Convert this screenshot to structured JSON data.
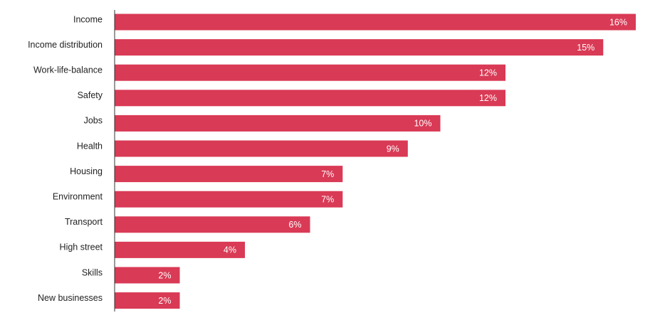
{
  "chart_data": {
    "type": "bar",
    "orientation": "horizontal",
    "title": "",
    "xlabel": "",
    "ylabel": "",
    "categories": [
      "Income",
      "Income distribution",
      "Work-life-balance",
      "Safety",
      "Jobs",
      "Health",
      "Housing",
      "Environment",
      "Transport",
      "High street",
      "Skills",
      "New businesses"
    ],
    "values": [
      16,
      15,
      12,
      12,
      10,
      9,
      7,
      7,
      6,
      4,
      2,
      2
    ],
    "value_labels": [
      "16%",
      "15%",
      "12%",
      "12%",
      "10%",
      "9%",
      "7%",
      "7%",
      "6%",
      "4%",
      "2%",
      "2%"
    ],
    "unit": "%",
    "xlim": [
      0,
      16
    ],
    "grid": false,
    "legend": "none",
    "colors": {
      "bar": "#d93a55",
      "value_label": "#ffffff",
      "category_label": "#222222",
      "axis_line": "#333333"
    }
  }
}
